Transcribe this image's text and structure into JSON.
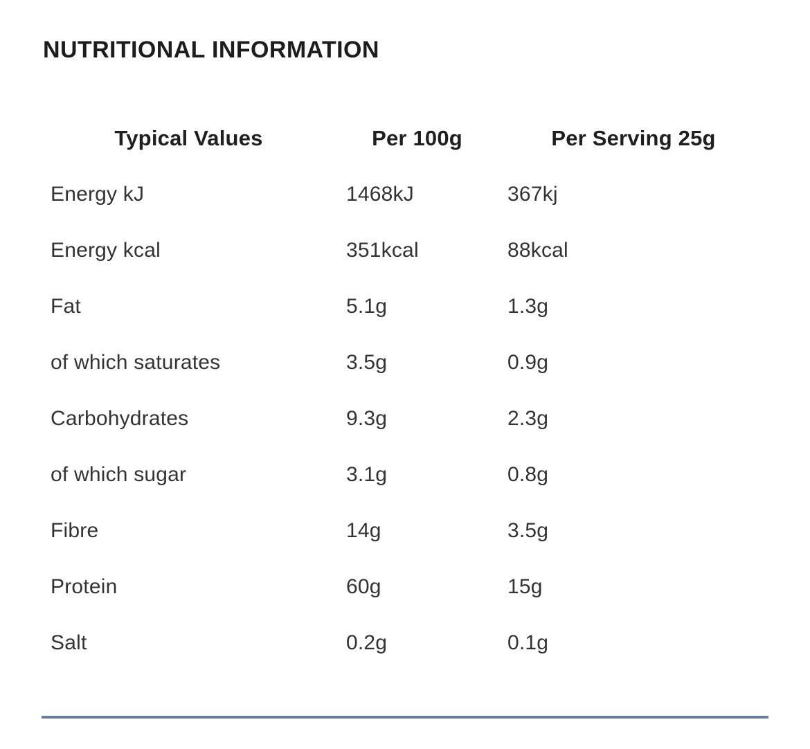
{
  "page": {
    "title": "NUTRITIONAL INFORMATION"
  },
  "table": {
    "headers": [
      "Typical Values",
      "Per 100g",
      "Per Serving 25g"
    ],
    "rows": [
      {
        "label": "Energy kJ",
        "per_100g": "1468kJ",
        "per_serving": "367kj"
      },
      {
        "label": "Energy kcal",
        "per_100g": "351kcal",
        "per_serving": "88kcal"
      },
      {
        "label": "Fat",
        "per_100g": "5.1g",
        "per_serving": "1.3g"
      },
      {
        "label": "of which saturates",
        "per_100g": "3.5g",
        "per_serving": "0.9g"
      },
      {
        "label": "Carbohydrates",
        "per_100g": "9.3g",
        "per_serving": "2.3g"
      },
      {
        "label": "of which sugar",
        "per_100g": "3.1g",
        "per_serving": "0.8g"
      },
      {
        "label": "Fibre",
        "per_100g": "14g",
        "per_serving": "3.5g"
      },
      {
        "label": "Protein",
        "per_100g": "60g",
        "per_serving": "15g"
      },
      {
        "label": "Salt",
        "per_100g": "0.2g",
        "per_serving": "0.1g"
      }
    ]
  },
  "colors": {
    "title_text": "#1d1d1d",
    "body_text": "#333333",
    "divider": "#6A7F96"
  }
}
